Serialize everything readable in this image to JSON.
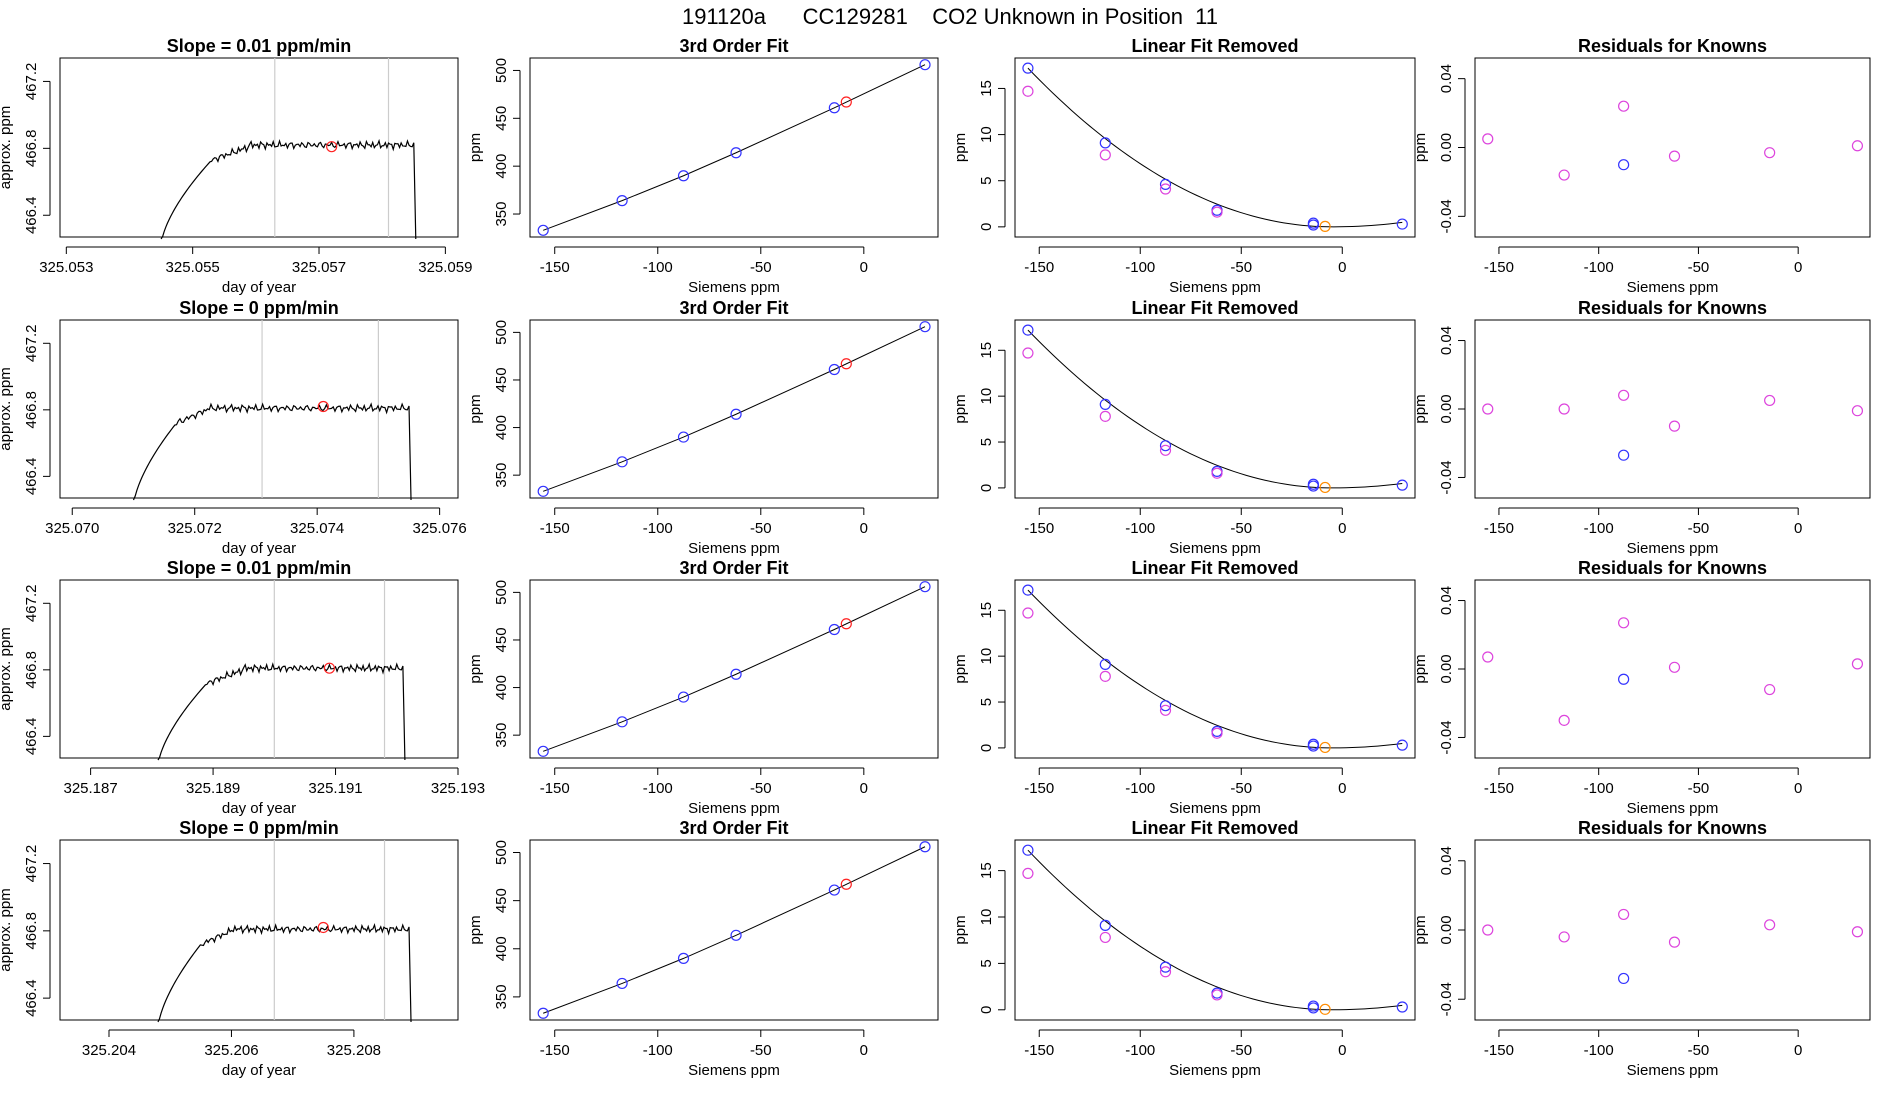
{
  "title": "191120a      CC129281    CO2 Unknown in Position  11",
  "labels": {
    "day_of_year": "day of year",
    "approx_ppm": "approx. ppm",
    "ppm": "ppm",
    "siemens_ppm": "Siemens ppm",
    "fit_title": "3rd Order Fit",
    "linear_title": "Linear Fit Removed",
    "resid_title": "Residuals for Knowns"
  },
  "colors": {
    "line": "#000000",
    "blue": "#3333ff",
    "red": "#ff2222",
    "magenta": "#dd44dd",
    "orange": "#ff8c00",
    "vline": "#cccccc"
  },
  "chart_data": [
    {
      "row": 1,
      "time_series": {
        "type": "line",
        "title": "Slope =  0.01  ppm/min",
        "xlabel": "day of year",
        "ylabel": "approx. ppm",
        "xlim": [
          325.0529,
          325.0592
        ],
        "ylim": [
          466.27,
          467.34
        ],
        "xticks": [
          325.053,
          325.055,
          325.057,
          325.059
        ],
        "xtick_labels": [
          "325.053",
          "325.055",
          "325.057",
          "325.059"
        ],
        "yticks": [
          466.4,
          466.8,
          467.2
        ],
        "ytick_labels": [
          "466.4",
          "466.8",
          "467.2"
        ],
        "vlines": [
          325.0563,
          325.0581
        ],
        "start": 325.0545,
        "level_start": 325.0553,
        "plateau_start": 325.0559,
        "end": 325.0585,
        "level": 466.82,
        "marker": {
          "x": 325.0572,
          "y": 466.81
        }
      },
      "fit": {
        "type": "scatter",
        "title": "3rd Order Fit",
        "xlabel": "Siemens ppm",
        "ylabel": "ppm",
        "standards": {
          "x": [
            -155.6,
            -117.3,
            -87.5,
            -62,
            -14.3,
            29.7
          ],
          "y": [
            333,
            364,
            390,
            414,
            461,
            506
          ]
        },
        "unknown": {
          "x": -8.5,
          "y": 467
        }
      },
      "linear_removed": {
        "type": "scatter",
        "title": "Linear Fit Removed",
        "xlabel": "Siemens ppm",
        "ylabel": "ppm",
        "blue": {
          "x": [
            -155.6,
            -117.3,
            -87.5,
            -62,
            -14.3,
            -14.3,
            29.7
          ],
          "y": [
            17.2,
            9.1,
            4.6,
            1.8,
            0.4,
            0.2,
            0.3
          ]
        },
        "magenta": {
          "x": [
            -155.6,
            -117.3,
            -87.5,
            -62
          ],
          "y": [
            14.7,
            7.8,
            4.1,
            1.6
          ]
        },
        "orange": {
          "x": -8.5,
          "y": 0.05
        }
      },
      "residuals": {
        "type": "scatter",
        "title": "Residuals for Knowns",
        "xlabel": "Siemens ppm",
        "ylabel": "ppm",
        "magenta": {
          "x": [
            -155.6,
            -117.3,
            -87.5,
            -62,
            -14.3,
            29.7
          ],
          "y": [
            0.005,
            -0.016,
            0.024,
            -0.005,
            -0.003,
            0.001
          ]
        },
        "blue": {
          "x": [
            -87.5
          ],
          "y": [
            -0.01
          ]
        }
      }
    },
    {
      "row": 2,
      "time_series": {
        "type": "line",
        "title": "Slope =  0  ppm/min",
        "xlabel": "day of year",
        "ylabel": "approx. ppm",
        "xlim": [
          325.0698,
          325.0763
        ],
        "ylim": [
          466.27,
          467.34
        ],
        "xticks": [
          325.07,
          325.072,
          325.074,
          325.076
        ],
        "xtick_labels": [
          "325.070",
          "325.072",
          "325.074",
          "325.076"
        ],
        "yticks": [
          466.4,
          466.8,
          467.2
        ],
        "ytick_labels": [
          "466.4",
          "466.8",
          "467.2"
        ],
        "vlines": [
          325.0731,
          325.075
        ],
        "start": 325.071,
        "level_start": 325.0717,
        "plateau_start": 325.0722,
        "end": 325.0755,
        "level": 466.81,
        "marker": {
          "x": 325.0741,
          "y": 466.82
        }
      },
      "fit": {
        "type": "scatter",
        "title": "3rd Order Fit",
        "xlabel": "Siemens ppm",
        "ylabel": "ppm",
        "standards": {
          "x": [
            -155.6,
            -117.3,
            -87.5,
            -62,
            -14.3,
            29.7
          ],
          "y": [
            333,
            364,
            390,
            414,
            461,
            506
          ]
        },
        "unknown": {
          "x": -8.5,
          "y": 467
        }
      },
      "linear_removed": {
        "type": "scatter",
        "title": "Linear Fit Removed",
        "xlabel": "Siemens ppm",
        "ylabel": "ppm",
        "blue": {
          "x": [
            -155.6,
            -117.3,
            -87.5,
            -62,
            -14.3,
            -14.3,
            29.7
          ],
          "y": [
            17.2,
            9.1,
            4.6,
            1.8,
            0.4,
            0.2,
            0.3
          ]
        },
        "magenta": {
          "x": [
            -155.6,
            -117.3,
            -87.5,
            -62
          ],
          "y": [
            14.7,
            7.8,
            4.1,
            1.6
          ]
        },
        "orange": {
          "x": -8.5,
          "y": 0.05
        }
      },
      "residuals": {
        "type": "scatter",
        "title": "Residuals for Knowns",
        "xlabel": "Siemens ppm",
        "ylabel": "ppm",
        "magenta": {
          "x": [
            -155.6,
            -117.3,
            -87.5,
            -62,
            -14.3,
            29.7
          ],
          "y": [
            0.0,
            0.0,
            0.008,
            -0.01,
            0.005,
            -0.001
          ]
        },
        "blue": {
          "x": [
            -87.5
          ],
          "y": [
            -0.027
          ]
        }
      }
    },
    {
      "row": 3,
      "time_series": {
        "type": "line",
        "title": "Slope =  0.01  ppm/min",
        "xlabel": "day of year",
        "ylabel": "approx. ppm",
        "xlim": [
          325.1865,
          325.193
        ],
        "ylim": [
          466.27,
          467.34
        ],
        "xticks": [
          325.187,
          325.189,
          325.191,
          325.193
        ],
        "xtick_labels": [
          "325.187",
          "325.189",
          "325.191",
          "325.193"
        ],
        "yticks": [
          466.4,
          466.8,
          467.2
        ],
        "ytick_labels": [
          "466.4",
          "466.8",
          "467.2"
        ],
        "vlines": [
          325.19,
          325.1918
        ],
        "start": 325.1881,
        "level_start": 325.1889,
        "plateau_start": 325.1895,
        "end": 325.1921,
        "level": 466.81,
        "marker": {
          "x": 325.1909,
          "y": 466.81
        }
      },
      "fit": {
        "type": "scatter",
        "title": "3rd Order Fit",
        "xlabel": "Siemens ppm",
        "ylabel": "ppm",
        "standards": {
          "x": [
            -155.6,
            -117.3,
            -87.5,
            -62,
            -14.3,
            29.7
          ],
          "y": [
            333,
            364,
            390,
            414,
            461,
            506
          ]
        },
        "unknown": {
          "x": -8.5,
          "y": 467
        }
      },
      "linear_removed": {
        "type": "scatter",
        "title": "Linear Fit Removed",
        "xlabel": "Siemens ppm",
        "ylabel": "ppm",
        "blue": {
          "x": [
            -155.6,
            -117.3,
            -87.5,
            -62,
            -14.3,
            -14.3,
            29.7
          ],
          "y": [
            17.2,
            9.1,
            4.6,
            1.8,
            0.4,
            0.2,
            0.3
          ]
        },
        "magenta": {
          "x": [
            -155.6,
            -117.3,
            -87.5,
            -62
          ],
          "y": [
            14.7,
            7.8,
            4.1,
            1.6
          ]
        },
        "orange": {
          "x": -8.5,
          "y": 0.05
        }
      },
      "residuals": {
        "type": "scatter",
        "title": "Residuals for Knowns",
        "xlabel": "Siemens ppm",
        "ylabel": "ppm",
        "magenta": {
          "x": [
            -155.6,
            -117.3,
            -87.5,
            -62,
            -14.3,
            29.7
          ],
          "y": [
            0.007,
            -0.03,
            0.027,
            0.001,
            -0.012,
            0.003
          ]
        },
        "blue": {
          "x": [
            -87.5
          ],
          "y": [
            -0.006
          ]
        }
      }
    },
    {
      "row": 4,
      "time_series": {
        "type": "line",
        "title": "Slope =  0  ppm/min",
        "xlabel": "day of year",
        "ylabel": "approx. ppm",
        "xlim": [
          325.2032,
          325.2097
        ],
        "ylim": [
          466.27,
          467.34
        ],
        "xticks": [
          325.204,
          325.206,
          325.208
        ],
        "xtick_labels": [
          "325.204",
          "325.206",
          "325.208"
        ],
        "yticks": [
          466.4,
          466.8,
          467.2
        ],
        "ytick_labels": [
          "466.4",
          "466.8",
          "467.2"
        ],
        "vlines": [
          325.2067,
          325.2085
        ],
        "start": 325.2048,
        "level_start": 325.2055,
        "plateau_start": 325.206,
        "end": 325.2089,
        "level": 466.81,
        "marker": {
          "x": 325.2075,
          "y": 466.82
        }
      },
      "fit": {
        "type": "scatter",
        "title": "3rd Order Fit",
        "xlabel": "Siemens ppm",
        "ylabel": "ppm",
        "standards": {
          "x": [
            -155.6,
            -117.3,
            -87.5,
            -62,
            -14.3,
            29.7
          ],
          "y": [
            333,
            364,
            390,
            414,
            461,
            506
          ]
        },
        "unknown": {
          "x": -8.5,
          "y": 467
        }
      },
      "linear_removed": {
        "type": "scatter",
        "title": "Linear Fit Removed",
        "xlabel": "Siemens ppm",
        "ylabel": "ppm",
        "blue": {
          "x": [
            -155.6,
            -117.3,
            -87.5,
            -62,
            -14.3,
            -14.3,
            29.7
          ],
          "y": [
            17.2,
            9.1,
            4.6,
            1.8,
            0.4,
            0.2,
            0.3
          ]
        },
        "magenta": {
          "x": [
            -155.6,
            -117.3,
            -87.5,
            -62
          ],
          "y": [
            14.7,
            7.8,
            4.1,
            1.6
          ]
        },
        "orange": {
          "x": -8.5,
          "y": 0.05
        }
      },
      "residuals": {
        "type": "scatter",
        "title": "Residuals for Knowns",
        "xlabel": "Siemens ppm",
        "ylabel": "ppm",
        "magenta": {
          "x": [
            -155.6,
            -117.3,
            -87.5,
            -62,
            -14.3,
            29.7
          ],
          "y": [
            0.0,
            -0.004,
            0.009,
            -0.007,
            0.003,
            -0.001
          ]
        },
        "blue": {
          "x": [
            -87.5
          ],
          "y": [
            -0.028
          ]
        }
      }
    }
  ],
  "shared_axes": {
    "siemens_xlim": [
      -162,
      36
    ],
    "siemens_xticks": [
      -150,
      -100,
      -50,
      0
    ],
    "siemens_xtick_labels": [
      "-150",
      "-100",
      "-50",
      "0"
    ],
    "fit_ylim": [
      326,
      513
    ],
    "fit_yticks": [
      350,
      400,
      450,
      500
    ],
    "fit_ytick_labels": [
      "350",
      "400",
      "450",
      "500"
    ],
    "linear_ylim": [
      -1.1,
      18.3
    ],
    "linear_yticks": [
      0,
      5,
      10,
      15
    ],
    "linear_ytick_labels": [
      "0",
      "5",
      "10",
      "15"
    ],
    "resid_ylim": [
      -0.052,
      0.052
    ],
    "resid_yticks": [
      -0.04,
      0.0,
      0.04
    ],
    "resid_ytick_labels": [
      "-0.04",
      "0.00",
      "0.04"
    ]
  }
}
